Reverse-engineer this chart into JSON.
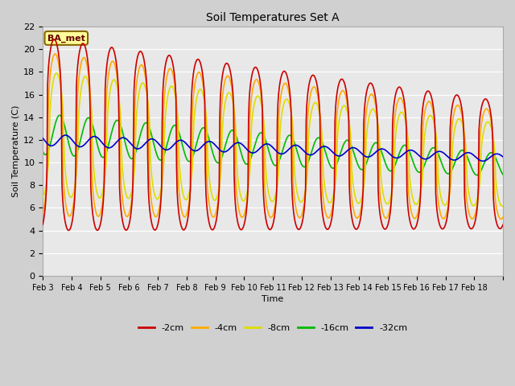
{
  "title": "Soil Temperatures Set A",
  "xlabel": "Time",
  "ylabel": "Soil Temperature (C)",
  "ylim": [
    0,
    22
  ],
  "yticks": [
    0,
    2,
    4,
    6,
    8,
    10,
    12,
    14,
    16,
    18,
    20,
    22
  ],
  "xtick_labels": [
    "Feb 3",
    "Feb 4",
    "Feb 5",
    "Feb 6",
    "Feb 7",
    "Feb 8",
    "Feb 9",
    "Feb 10",
    "Feb 11",
    "Feb 12",
    "Feb 13",
    "Feb 14",
    "Feb 15",
    "Feb 16",
    "Feb 17",
    "Feb 18"
  ],
  "colors": {
    "-2cm": "#cc0000",
    "-4cm": "#ffaa00",
    "-8cm": "#dddd00",
    "-16cm": "#00bb00",
    "-32cm": "#0000cc"
  },
  "legend_bg": "#ffff99",
  "legend_border": "#886600",
  "plot_bg": "#e8e8e8",
  "fig_bg": "#d0d0d0",
  "linewidth": 1.2,
  "n_days": 16,
  "pts_per_day": 48,
  "annotation_text": "BA_met"
}
